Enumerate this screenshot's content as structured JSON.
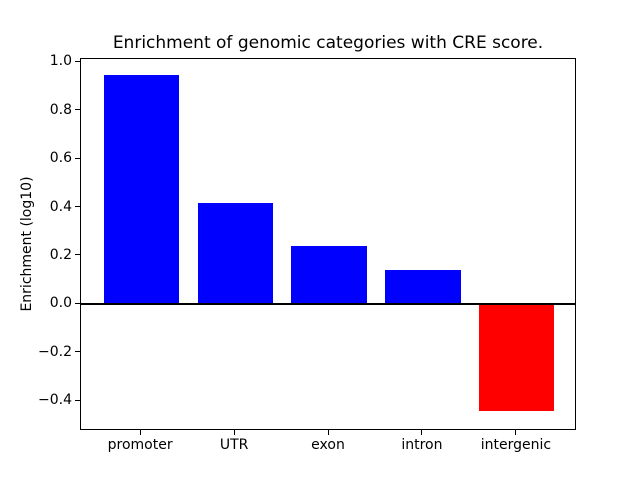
{
  "chart_data": {
    "type": "bar",
    "title": "Enrichment of genomic categories with CRE score.",
    "xlabel": "",
    "ylabel": "Enrichment (log10)",
    "categories": [
      "promoter",
      "UTR",
      "exon",
      "intron",
      "intergenic"
    ],
    "values": [
      0.95,
      0.42,
      0.24,
      0.14,
      -0.44
    ],
    "bar_colors": [
      "#0000ff",
      "#0000ff",
      "#0000ff",
      "#0000ff",
      "#ff0000"
    ],
    "positive_color": "#0000ff",
    "negative_color": "#ff0000",
    "bar_width": 0.8,
    "xlim": [
      -0.64,
      4.64
    ],
    "ylim": [
      -0.524,
      1.014
    ],
    "yticks": [
      1.0,
      0.8,
      0.6,
      0.4,
      0.2,
      0.0,
      -0.2,
      -0.4
    ],
    "ytick_labels": [
      "1.0",
      "0.8",
      "0.6",
      "0.4",
      "0.2",
      "0.0",
      "−0.2",
      "−0.4"
    ],
    "zero_line": true,
    "grid": false,
    "legend": null,
    "axis_color": "#000000",
    "background_color": "#ffffff"
  }
}
